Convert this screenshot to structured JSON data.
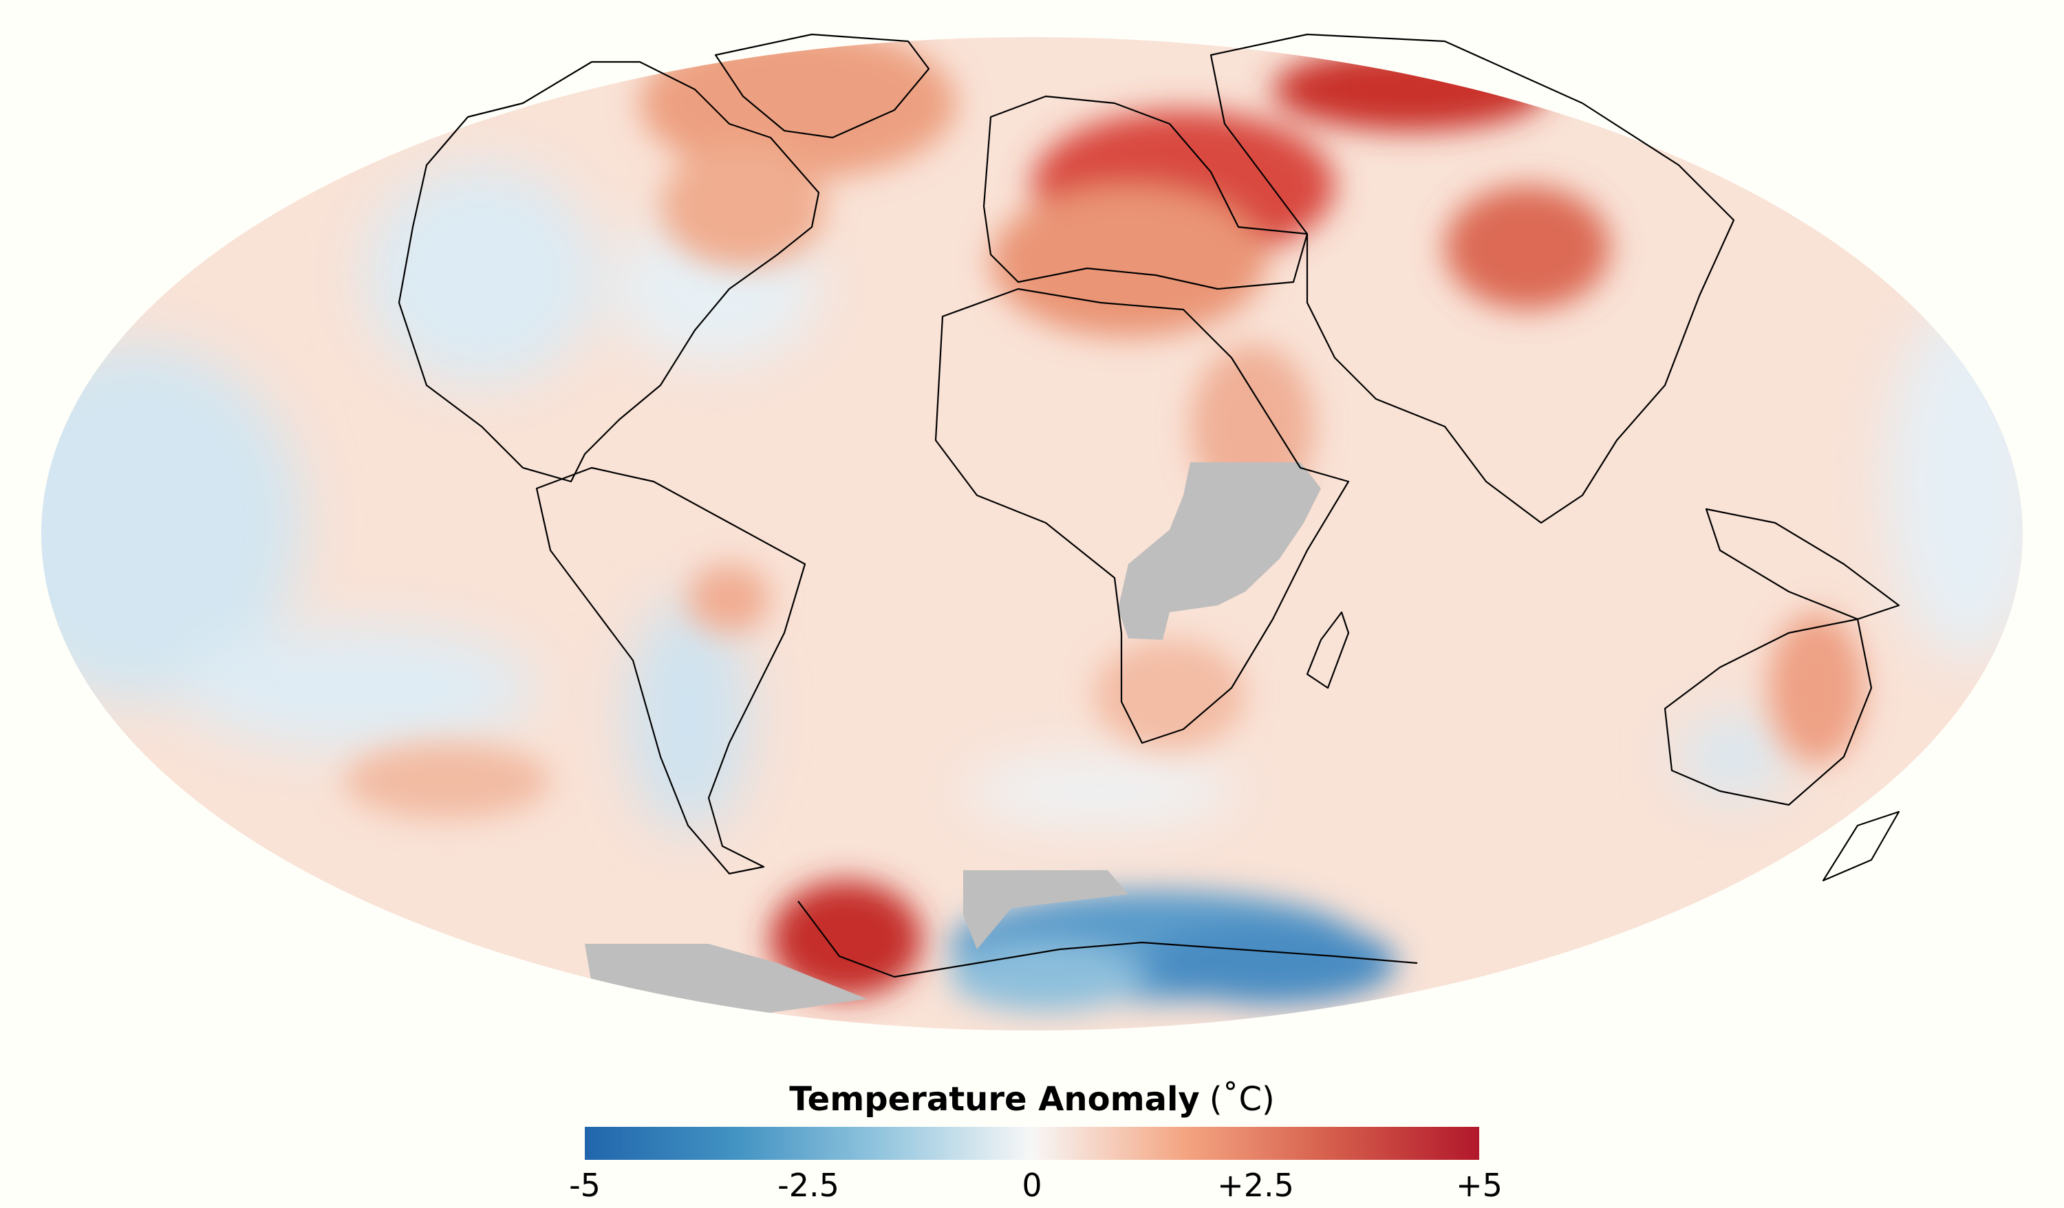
{
  "map": {
    "projection": "mollweide",
    "center": "Atlantic",
    "no_data_color": "#bebebe",
    "coastline_color": "#000000",
    "background_color": "#fffffa"
  },
  "legend": {
    "title": "Temperature Anomaly",
    "unit": "(˚C)",
    "ticks": [
      "-5",
      "-2.5",
      "0",
      "+2.5",
      "+5"
    ],
    "colors": [
      "#2166ac",
      "#4393c3",
      "#92c5de",
      "#f7f7f7",
      "#f4a582",
      "#d6604d",
      "#b2182b"
    ]
  }
}
